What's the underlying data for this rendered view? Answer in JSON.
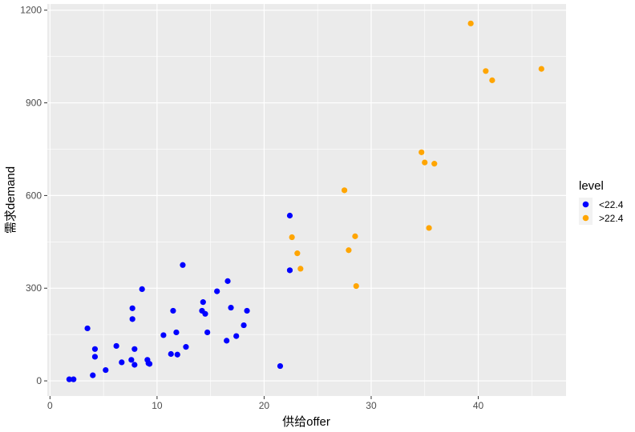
{
  "chart_data": {
    "type": "scatter",
    "xlabel": "供给offer",
    "ylabel": "需求demand",
    "xlim": [
      -0.25,
      48.2
    ],
    "ylim": [
      -49,
      1220
    ],
    "x_ticks": [
      0,
      10,
      20,
      30,
      40
    ],
    "y_ticks": [
      0,
      300,
      600,
      900,
      1200
    ],
    "grid": true,
    "legend": {
      "title": "level",
      "position": "right",
      "entries": [
        {
          "label": "<22.4",
          "color": "#0000ff"
        },
        {
          "label": ">22.4",
          "color": "#ffa500"
        }
      ]
    },
    "series": [
      {
        "name": "<22.4",
        "color": "#0000ff",
        "points": [
          [
            1.8,
            5
          ],
          [
            2.2,
            5
          ],
          [
            3.5,
            170
          ],
          [
            4.0,
            18
          ],
          [
            4.2,
            78
          ],
          [
            4.2,
            103
          ],
          [
            5.2,
            35
          ],
          [
            6.2,
            113
          ],
          [
            6.7,
            60
          ],
          [
            7.6,
            68
          ],
          [
            7.7,
            235
          ],
          [
            7.7,
            200
          ],
          [
            7.9,
            52
          ],
          [
            7.9,
            103
          ],
          [
            8.6,
            297
          ],
          [
            9.1,
            68
          ],
          [
            9.2,
            57
          ],
          [
            9.3,
            55
          ],
          [
            10.6,
            148
          ],
          [
            11.3,
            87
          ],
          [
            11.5,
            227
          ],
          [
            11.8,
            157
          ],
          [
            11.9,
            85
          ],
          [
            12.4,
            375
          ],
          [
            12.7,
            110
          ],
          [
            14.2,
            227
          ],
          [
            14.3,
            255
          ],
          [
            14.5,
            217
          ],
          [
            14.7,
            157
          ],
          [
            15.6,
            290
          ],
          [
            16.5,
            130
          ],
          [
            16.6,
            323
          ],
          [
            16.9,
            237
          ],
          [
            17.4,
            145
          ],
          [
            18.1,
            180
          ],
          [
            18.4,
            227
          ],
          [
            21.5,
            48
          ],
          [
            22.4,
            358
          ],
          [
            22.4,
            535
          ]
        ]
      },
      {
        "name": ">22.4",
        "color": "#ffa500",
        "points": [
          [
            22.6,
            465
          ],
          [
            23.1,
            413
          ],
          [
            23.4,
            363
          ],
          [
            27.5,
            617
          ],
          [
            27.9,
            423
          ],
          [
            28.5,
            468
          ],
          [
            28.6,
            307
          ],
          [
            34.7,
            740
          ],
          [
            35.0,
            707
          ],
          [
            35.4,
            495
          ],
          [
            35.9,
            703
          ],
          [
            39.3,
            1157
          ],
          [
            40.7,
            1003
          ],
          [
            41.3,
            973
          ],
          [
            45.9,
            1010
          ]
        ]
      }
    ]
  }
}
